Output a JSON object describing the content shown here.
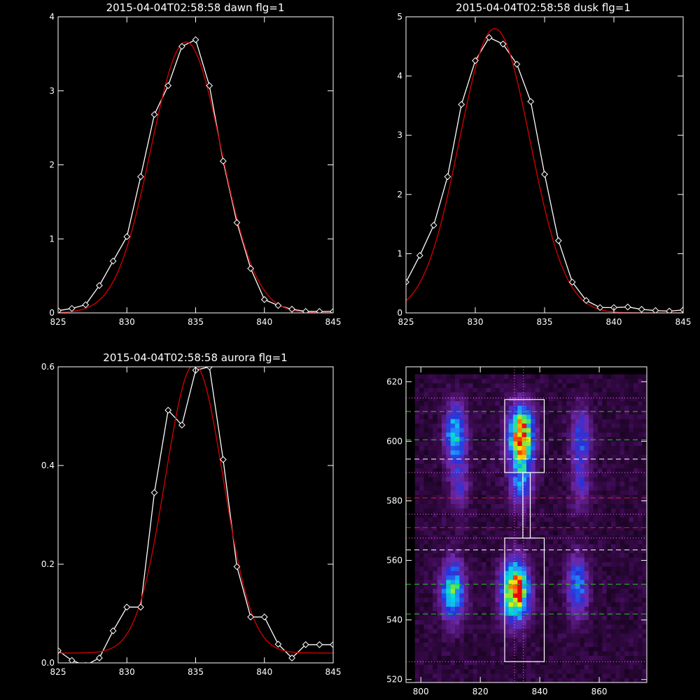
{
  "colors": {
    "background": "#000000",
    "axes": "#ffffff",
    "data_line": "#ffffff",
    "fit_line": "#cc0000"
  },
  "chart_data": [
    {
      "type": "line",
      "title": "2015-04-04T02:58:58 dawn flg=1",
      "xlim": [
        825,
        845
      ],
      "ylim": [
        0,
        4
      ],
      "xticks": [
        "825",
        "830",
        "835",
        "840",
        "845"
      ],
      "yticks": [
        "0",
        "1",
        "2",
        "3",
        "4"
      ],
      "series": [
        {
          "style": "line-diamond",
          "x": [
            825,
            826,
            827,
            828,
            829,
            830,
            831,
            832,
            833,
            834,
            835,
            836,
            837,
            838,
            839,
            840,
            841,
            842,
            843,
            844,
            845
          ],
          "y": [
            0.03,
            0.06,
            0.11,
            0.37,
            0.7,
            1.03,
            1.84,
            2.68,
            3.07,
            3.6,
            3.69,
            3.07,
            2.05,
            1.22,
            0.6,
            0.18,
            0.1,
            0.05,
            0.02,
            0.02,
            0.02
          ]
        },
        {
          "style": "fit-gaussian",
          "amp": 3.66,
          "center": 834.3,
          "sigma": 2.55,
          "base": 0.0
        }
      ]
    },
    {
      "type": "line",
      "title": "2015-04-04T02:58:58 dusk flg=1",
      "xlim": [
        825,
        845
      ],
      "ylim": [
        0,
        5
      ],
      "xticks": [
        "825",
        "830",
        "835",
        "840",
        "845"
      ],
      "yticks": [
        "0",
        "1",
        "2",
        "3",
        "4",
        "5"
      ],
      "series": [
        {
          "style": "line-diamond",
          "x": [
            825,
            826,
            827,
            828,
            829,
            830,
            831,
            832,
            833,
            834,
            835,
            836,
            837,
            838,
            839,
            840,
            841,
            842,
            843,
            844,
            845
          ],
          "y": [
            0.52,
            0.97,
            1.48,
            2.3,
            3.52,
            4.26,
            4.65,
            4.54,
            4.2,
            3.57,
            2.34,
            1.22,
            0.52,
            0.21,
            0.09,
            0.09,
            0.1,
            0.06,
            0.04,
            0.03,
            0.05
          ]
        },
        {
          "style": "fit-gaussian",
          "amp": 4.8,
          "center": 831.4,
          "sigma": 2.55,
          "base": 0.0
        }
      ]
    },
    {
      "type": "line",
      "title": "2015-04-04T02:58:58 aurora flg=1",
      "xlim": [
        825,
        845
      ],
      "ylim": [
        0,
        0.6
      ],
      "xticks": [
        "825",
        "830",
        "835",
        "840",
        "845"
      ],
      "yticks": [
        "0.0",
        "0.2",
        "0.4",
        "0.6"
      ],
      "series": [
        {
          "style": "line-diamond",
          "x": [
            825,
            826,
            827,
            828,
            829,
            830,
            831,
            832,
            833,
            834,
            835,
            836,
            837,
            838,
            839,
            840,
            841,
            842,
            843,
            844,
            845
          ],
          "y": [
            0.025,
            0.005,
            -0.005,
            0.01,
            0.065,
            0.113,
            0.113,
            0.345,
            0.512,
            0.482,
            0.593,
            0.6,
            0.412,
            0.195,
            0.093,
            0.093,
            0.038,
            0.01,
            0.037,
            0.037,
            0.037
          ]
        },
        {
          "style": "fit-gaussian",
          "amp": 0.585,
          "center": 834.9,
          "sigma": 2.1,
          "base": 0.02
        }
      ]
    },
    {
      "type": "heatmap",
      "title": "",
      "xlim": [
        795,
        876
      ],
      "ylim": [
        519,
        625
      ],
      "xticks": [
        "800",
        "820",
        "840",
        "860"
      ],
      "yticks": [
        "520",
        "540",
        "560",
        "580",
        "600",
        "620"
      ],
      "blobs": [
        {
          "x": 811,
          "y": 602,
          "sx": 2.4,
          "sy": 6.5,
          "amp": 0.5
        },
        {
          "x": 812,
          "y": 585,
          "sx": 2.2,
          "sy": 6.0,
          "amp": 0.22
        },
        {
          "x": 833,
          "y": 601,
          "sx": 2.8,
          "sy": 6.5,
          "amp": 0.95
        },
        {
          "x": 833,
          "y": 586,
          "sx": 2.6,
          "sy": 6.0,
          "amp": 0.35
        },
        {
          "x": 853,
          "y": 601,
          "sx": 2.3,
          "sy": 6.5,
          "amp": 0.3
        },
        {
          "x": 853,
          "y": 585,
          "sx": 2.2,
          "sy": 6.0,
          "amp": 0.2
        },
        {
          "x": 810,
          "y": 549,
          "sx": 2.6,
          "sy": 6.5,
          "amp": 0.58
        },
        {
          "x": 831,
          "y": 549,
          "sx": 2.9,
          "sy": 6.5,
          "amp": 1.0
        },
        {
          "x": 852,
          "y": 551,
          "sx": 2.4,
          "sy": 7.0,
          "amp": 0.36
        }
      ],
      "hlines": [
        {
          "y": 610,
          "color": "#22cc22",
          "style": "dashed"
        },
        {
          "y": 600.5,
          "color": "#22cc22",
          "style": "dashed"
        },
        {
          "y": 594,
          "color": "#ffffff",
          "style": "dashed"
        },
        {
          "y": 589.5,
          "color": "#ff66ff",
          "style": "dotted"
        },
        {
          "y": 614.5,
          "color": "#ff66ff",
          "style": "dotted"
        },
        {
          "y": 581,
          "color": "#dd2222",
          "style": "dashed"
        },
        {
          "y": 575.5,
          "color": "#ff66ff",
          "style": "dotted"
        },
        {
          "y": 571,
          "color": "#dd2222",
          "style": "dashed"
        },
        {
          "y": 567.5,
          "color": "#ff66ff",
          "style": "dotted"
        },
        {
          "y": 563.5,
          "color": "#ffffff",
          "style": "dashed"
        },
        {
          "y": 552,
          "color": "#22cc22",
          "style": "dashed"
        },
        {
          "y": 542,
          "color": "#22cc22",
          "style": "dashed"
        },
        {
          "y": 526,
          "color": "#ff66ff",
          "style": "dotted"
        }
      ],
      "vlines": [
        {
          "x": 831.5,
          "color": "#ff66ff",
          "style": "dotted"
        },
        {
          "x": 834.5,
          "color": "#ff66ff",
          "style": "dotted"
        }
      ],
      "boxes": [
        {
          "x0": 828.2,
          "x1": 841.5,
          "y0": 589.5,
          "y1": 614
        },
        {
          "x0": 828.2,
          "x1": 841.5,
          "y0": 526,
          "y1": 567.5
        }
      ],
      "connector": {
        "x0": 834.3,
        "x1": 836.8,
        "y0": 567.5,
        "y1": 589.5
      }
    }
  ]
}
